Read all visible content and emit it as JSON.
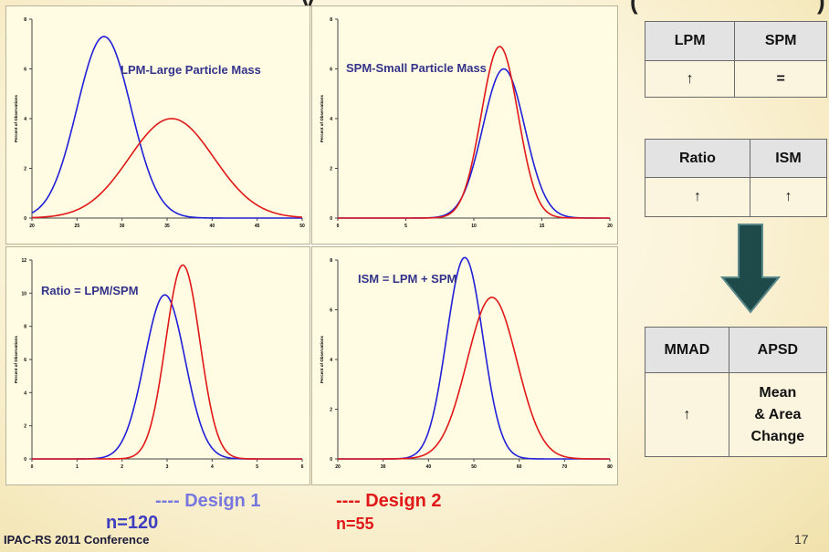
{
  "slide": {
    "footer": "IPAC-RS 2011 Conference",
    "page_number": "17",
    "title_fragment_left": "y",
    "title_fragment_right": "(",
    "title_fragment_right2": ")"
  },
  "legend": {
    "design1_label": "---- Design 1",
    "design1_n": "n=120",
    "design2_label": "---- Design 2",
    "design2_n": "n=55",
    "design1_color": "#2020d8",
    "design2_color": "#e01818"
  },
  "tables": {
    "t1": {
      "headers": [
        "LPM",
        "SPM"
      ],
      "values": [
        "↑",
        "="
      ]
    },
    "t2": {
      "headers": [
        "Ratio",
        "ISM"
      ],
      "values": [
        "↑",
        "↑"
      ]
    },
    "t3": {
      "headers": [
        "MMAD",
        "APSD"
      ],
      "values": [
        "↑",
        "Mean",
        "& Area",
        "Change"
      ]
    }
  },
  "chart_data": [
    {
      "type": "line",
      "panel_label": "LPM-Large Particle Mass",
      "ylabel": "Percent of Observations",
      "xlim": [
        20,
        50
      ],
      "x_ticks": [
        "20",
        "25",
        "30",
        "35",
        "40",
        "45",
        "50"
      ],
      "ylim": [
        0,
        8
      ],
      "y_ticks": [
        "0",
        "2",
        "4",
        "6",
        "8"
      ],
      "series": [
        {
          "name": "Design 1",
          "color": "#2020d8",
          "peak_x": 28,
          "peak_y": 7.3,
          "sd": 3.0
        },
        {
          "name": "Design 2",
          "color": "#e01818",
          "peak_x": 35.5,
          "peak_y": 4.0,
          "sd": 4.7
        }
      ]
    },
    {
      "type": "line",
      "panel_label": "SPM-Small Particle Mass",
      "ylabel": "Percent of Observations",
      "xlim": [
        0,
        20
      ],
      "x_ticks": [
        "0",
        "5",
        "10",
        "15",
        "20"
      ],
      "ylim": [
        0,
        8
      ],
      "y_ticks": [
        "0",
        "2",
        "4",
        "6",
        "8"
      ],
      "series": [
        {
          "name": "Design 1",
          "color": "#2020d8",
          "peak_x": 12.2,
          "peak_y": 6.0,
          "sd": 1.55
        },
        {
          "name": "Design 2",
          "color": "#e01818",
          "peak_x": 11.9,
          "peak_y": 6.9,
          "sd": 1.35
        }
      ]
    },
    {
      "type": "line",
      "panel_label": "Ratio = LPM/SPM",
      "ylabel": "Percent of Observations",
      "xlim": [
        0,
        6
      ],
      "x_ticks": [
        "0",
        "1",
        "2",
        "3",
        "4",
        "5",
        "6"
      ],
      "ylim": [
        0,
        12
      ],
      "y_ticks": [
        "0",
        "2",
        "4",
        "6",
        "8",
        "10",
        "12"
      ],
      "series": [
        {
          "name": "Design 1",
          "color": "#2020d8",
          "peak_x": 2.95,
          "peak_y": 9.9,
          "sd": 0.45
        },
        {
          "name": "Design 2",
          "color": "#e01818",
          "peak_x": 3.35,
          "peak_y": 11.7,
          "sd": 0.38
        }
      ]
    },
    {
      "type": "line",
      "panel_label": "ISM = LPM + SPM",
      "ylabel": "Percent of Observations",
      "xlim": [
        20,
        80
      ],
      "x_ticks": [
        "20",
        "30",
        "40",
        "50",
        "60",
        "70",
        "80"
      ],
      "ylim": [
        0,
        8
      ],
      "y_ticks": [
        "0",
        "2",
        "4",
        "6",
        "8"
      ],
      "series": [
        {
          "name": "Design 1",
          "color": "#2020d8",
          "peak_x": 48,
          "peak_y": 8.1,
          "sd": 4.0
        },
        {
          "name": "Design 2",
          "color": "#e01818",
          "peak_x": 54,
          "peak_y": 6.5,
          "sd": 5.5
        }
      ]
    }
  ]
}
